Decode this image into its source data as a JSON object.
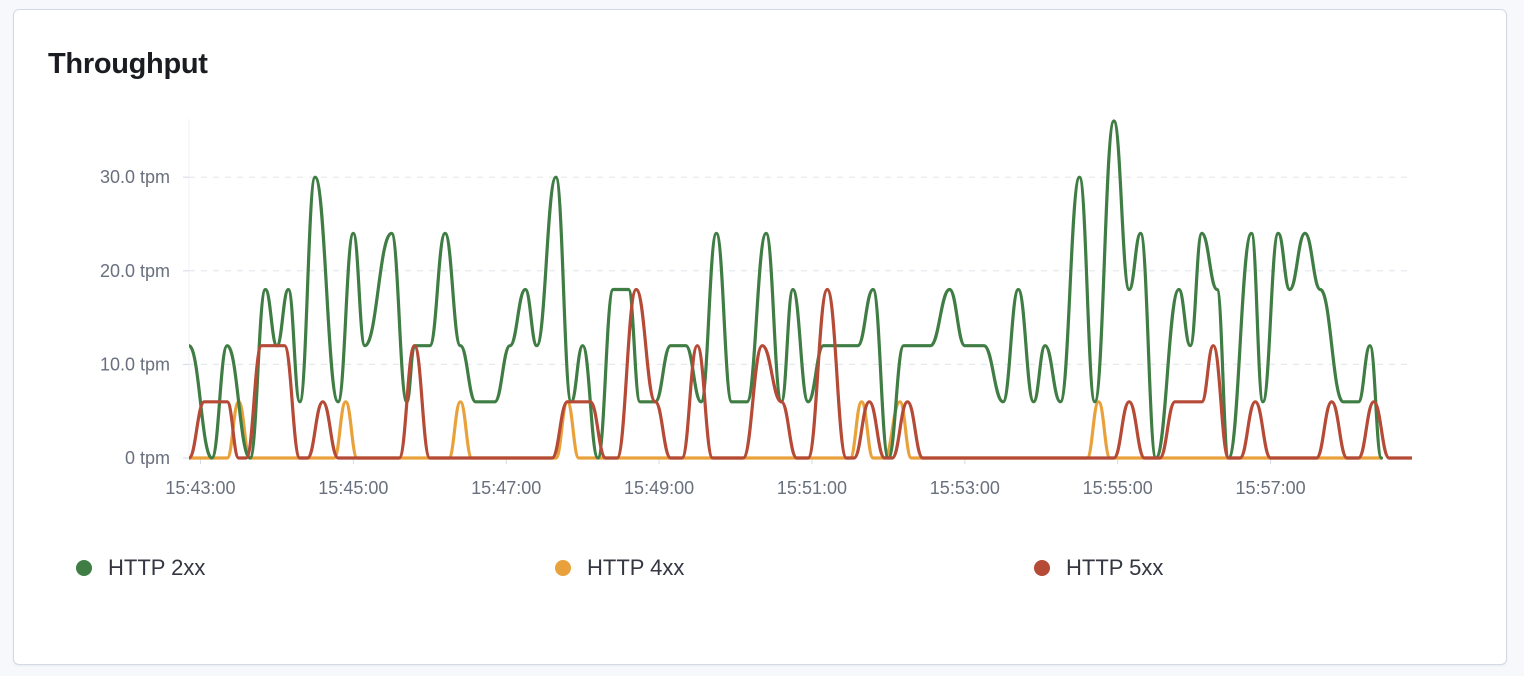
{
  "panel": {
    "title": "Throughput"
  },
  "chart_data": {
    "type": "line",
    "title": "Throughput",
    "xlabel": "",
    "ylabel": "",
    "x_ticks": [
      "15:43:00",
      "15:45:00",
      "15:47:00",
      "15:49:00",
      "15:51:00",
      "15:53:00",
      "15:55:00",
      "15:57:00"
    ],
    "y_ticks": [
      "0 tpm",
      "10.0 tpm",
      "20.0 tpm",
      "30.0 tpm"
    ],
    "ylim": [
      0,
      36
    ],
    "xlim_minutes": [
      42.85,
      57.18
    ],
    "grid": "horizontal-dashed",
    "legend_position": "bottom",
    "series": [
      {
        "name": "HTTP 2xx",
        "color": "#3f7d44",
        "points": [
          [
            42.85,
            12
          ],
          [
            43.15,
            0
          ],
          [
            43.35,
            12
          ],
          [
            43.65,
            0
          ],
          [
            43.85,
            18
          ],
          [
            44.0,
            12
          ],
          [
            44.15,
            18
          ],
          [
            44.3,
            6
          ],
          [
            44.5,
            30
          ],
          [
            44.8,
            6
          ],
          [
            45.0,
            24
          ],
          [
            45.15,
            12
          ],
          [
            45.5,
            24
          ],
          [
            45.7,
            6
          ],
          [
            45.8,
            12
          ],
          [
            46.0,
            12
          ],
          [
            46.2,
            24
          ],
          [
            46.4,
            12
          ],
          [
            46.6,
            6
          ],
          [
            46.85,
            6
          ],
          [
            47.05,
            12
          ],
          [
            47.25,
            18
          ],
          [
            47.4,
            12
          ],
          [
            47.65,
            30
          ],
          [
            47.85,
            6
          ],
          [
            48.0,
            12
          ],
          [
            48.2,
            0
          ],
          [
            48.4,
            18
          ],
          [
            48.6,
            18
          ],
          [
            48.75,
            6
          ],
          [
            48.95,
            6
          ],
          [
            49.15,
            12
          ],
          [
            49.35,
            12
          ],
          [
            49.55,
            6
          ],
          [
            49.75,
            24
          ],
          [
            49.95,
            6
          ],
          [
            50.15,
            6
          ],
          [
            50.4,
            24
          ],
          [
            50.6,
            6
          ],
          [
            50.75,
            18
          ],
          [
            50.95,
            6
          ],
          [
            51.15,
            12
          ],
          [
            51.6,
            12
          ],
          [
            51.8,
            18
          ],
          [
            52.0,
            0
          ],
          [
            52.2,
            12
          ],
          [
            52.55,
            12
          ],
          [
            52.8,
            18
          ],
          [
            53.0,
            12
          ],
          [
            53.25,
            12
          ],
          [
            53.5,
            6
          ],
          [
            53.7,
            18
          ],
          [
            53.9,
            6
          ],
          [
            54.05,
            12
          ],
          [
            54.25,
            6
          ],
          [
            54.5,
            30
          ],
          [
            54.7,
            6
          ],
          [
            54.95,
            36
          ],
          [
            55.15,
            18
          ],
          [
            55.3,
            24
          ],
          [
            55.5,
            0
          ],
          [
            55.8,
            18
          ],
          [
            55.95,
            12
          ],
          [
            56.1,
            24
          ],
          [
            56.3,
            18
          ],
          [
            56.45,
            0
          ],
          [
            56.75,
            24
          ],
          [
            56.9,
            6
          ],
          [
            57.1,
            24
          ],
          [
            57.25,
            18
          ],
          [
            57.45,
            24
          ],
          [
            57.65,
            18
          ],
          [
            57.95,
            6
          ],
          [
            58.15,
            6
          ],
          [
            58.3,
            12
          ],
          [
            58.45,
            0
          ]
        ]
      },
      {
        "name": "HTTP 4xx",
        "color": "#e9a23b",
        "points": [
          [
            42.85,
            0
          ],
          [
            43.35,
            0
          ],
          [
            43.5,
            6
          ],
          [
            43.65,
            0
          ],
          [
            44.75,
            0
          ],
          [
            44.9,
            6
          ],
          [
            45.05,
            0
          ],
          [
            46.25,
            0
          ],
          [
            46.4,
            6
          ],
          [
            46.55,
            0
          ],
          [
            47.65,
            0
          ],
          [
            47.8,
            6
          ],
          [
            47.95,
            0
          ],
          [
            51.5,
            0
          ],
          [
            51.65,
            6
          ],
          [
            51.8,
            0
          ],
          [
            51.95,
            0
          ],
          [
            52.15,
            6
          ],
          [
            52.3,
            0
          ],
          [
            54.6,
            0
          ],
          [
            54.75,
            6
          ],
          [
            54.9,
            0
          ],
          [
            58.45,
            0
          ]
        ]
      },
      {
        "name": "HTTP 5xx",
        "color": "#b54a36",
        "points": [
          [
            42.85,
            0
          ],
          [
            43.05,
            6
          ],
          [
            43.35,
            6
          ],
          [
            43.5,
            0
          ],
          [
            43.6,
            0
          ],
          [
            43.8,
            12
          ],
          [
            44.1,
            12
          ],
          [
            44.3,
            0
          ],
          [
            44.4,
            0
          ],
          [
            44.6,
            6
          ],
          [
            44.8,
            0
          ],
          [
            45.6,
            0
          ],
          [
            45.8,
            12
          ],
          [
            46.0,
            0
          ],
          [
            47.6,
            0
          ],
          [
            47.8,
            6
          ],
          [
            48.1,
            6
          ],
          [
            48.3,
            0
          ],
          [
            48.45,
            0
          ],
          [
            48.7,
            18
          ],
          [
            48.95,
            6
          ],
          [
            49.15,
            0
          ],
          [
            49.3,
            0
          ],
          [
            49.5,
            12
          ],
          [
            49.7,
            0
          ],
          [
            50.1,
            0
          ],
          [
            50.35,
            12
          ],
          [
            50.6,
            6
          ],
          [
            50.8,
            0
          ],
          [
            50.95,
            0
          ],
          [
            51.2,
            18
          ],
          [
            51.45,
            0
          ],
          [
            51.55,
            0
          ],
          [
            51.75,
            6
          ],
          [
            51.95,
            0
          ],
          [
            52.05,
            0
          ],
          [
            52.25,
            6
          ],
          [
            52.45,
            0
          ],
          [
            54.95,
            0
          ],
          [
            55.15,
            6
          ],
          [
            55.35,
            0
          ],
          [
            55.55,
            0
          ],
          [
            55.75,
            6
          ],
          [
            56.1,
            6
          ],
          [
            56.25,
            12
          ],
          [
            56.45,
            0
          ],
          [
            56.6,
            0
          ],
          [
            56.8,
            6
          ],
          [
            57.0,
            0
          ],
          [
            57.6,
            0
          ],
          [
            57.8,
            6
          ],
          [
            58.0,
            0
          ],
          [
            58.15,
            0
          ],
          [
            58.35,
            6
          ],
          [
            58.55,
            0
          ],
          [
            59.0,
            0
          ]
        ]
      }
    ]
  }
}
